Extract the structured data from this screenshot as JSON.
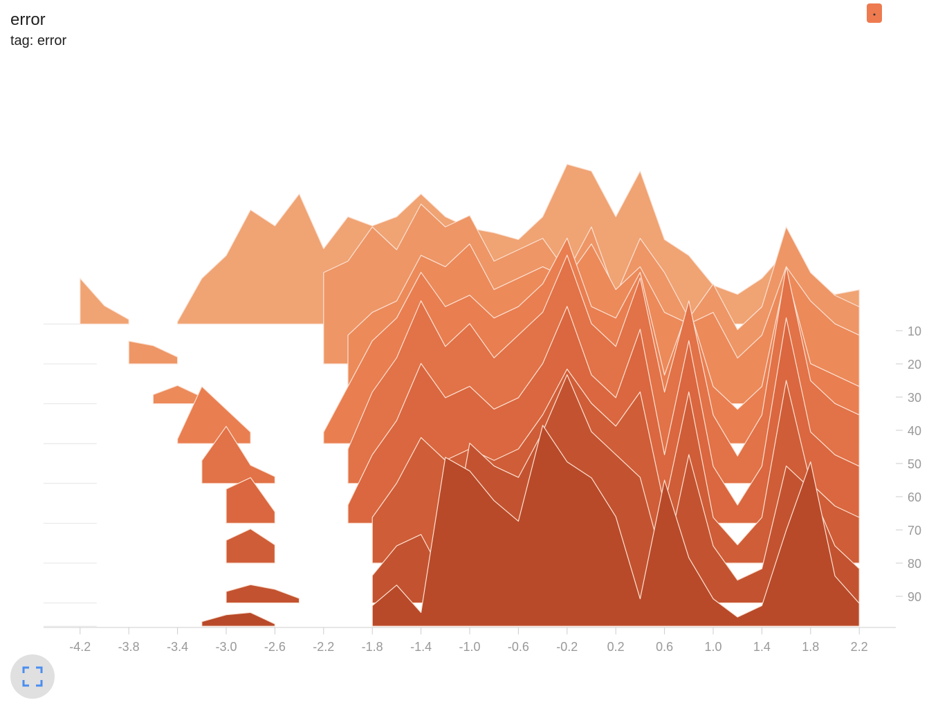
{
  "header": {
    "title": "error",
    "tag": "tag: error"
  },
  "chart_data": {
    "type": "ridgeline",
    "x": [
      -4.2,
      -4.0,
      -3.8,
      -3.6,
      -3.4,
      -3.2,
      -3.0,
      -2.8,
      -2.6,
      -2.4,
      -2.2,
      -2.0,
      -1.8,
      -1.6,
      -1.4,
      -1.2,
      -1.0,
      -0.8,
      -0.6,
      -0.4,
      -0.2,
      0.0,
      0.2,
      0.4,
      0.6,
      0.8,
      1.0,
      1.2,
      1.4,
      1.6,
      1.8,
      2.0,
      2.2
    ],
    "xlim": [
      -4.5,
      2.5
    ],
    "xticks": [
      -4.2,
      -3.8,
      -3.4,
      {
        "value": -3,
        "label": "-3.0"
      },
      -2.6,
      -2.2,
      -1.8,
      -1.4,
      {
        "value": -1,
        "label": "-1.0"
      },
      -0.6,
      -0.2,
      0.2,
      0.6,
      {
        "value": 1,
        "label": "1.0"
      },
      1.4,
      1.8,
      2.2
    ],
    "ylim": [
      0,
      100
    ],
    "yticks": [
      10,
      20,
      30,
      40,
      50,
      60,
      70,
      80,
      90
    ],
    "series": [
      {
        "step": 8,
        "color": "#f0a373",
        "values": [
          20,
          8,
          2,
          null,
          1,
          20,
          30,
          50,
          43,
          57,
          33,
          47,
          43,
          47,
          57,
          47,
          42,
          40,
          37,
          47,
          70,
          67,
          47,
          67,
          37,
          30,
          17,
          13,
          20,
          32,
          20,
          13,
          15
        ]
      },
      {
        "step": 20,
        "color": "#ee9666",
        "values": [
          null,
          null,
          10,
          8,
          3,
          null,
          null,
          null,
          null,
          null,
          40,
          45,
          60,
          50,
          70,
          60,
          65,
          45,
          50,
          55,
          40,
          60,
          30,
          55,
          40,
          20,
          35,
          15,
          25,
          60,
          40,
          30,
          25
        ]
      },
      {
        "step": 32,
        "color": "#ec8a5a",
        "values": [
          null,
          null,
          null,
          4,
          8,
          3,
          null,
          null,
          null,
          null,
          null,
          30,
          40,
          45,
          65,
          60,
          70,
          50,
          55,
          60,
          55,
          70,
          50,
          60,
          40,
          35,
          40,
          20,
          30,
          60,
          45,
          35,
          30
        ]
      },
      {
        "step": 44,
        "color": "#e97e50",
        "values": [
          null,
          null,
          null,
          null,
          2,
          25,
          15,
          5,
          null,
          null,
          5,
          25,
          45,
          55,
          75,
          60,
          65,
          55,
          60,
          70,
          90,
          60,
          55,
          75,
          30,
          60,
          25,
          15,
          25,
          75,
          35,
          30,
          25
        ]
      },
      {
        "step": 56,
        "color": "#e27247",
        "values": [
          null,
          null,
          null,
          null,
          null,
          10,
          25,
          8,
          3,
          null,
          null,
          15,
          40,
          55,
          80,
          60,
          70,
          55,
          65,
          75,
          100,
          70,
          60,
          90,
          40,
          80,
          30,
          12,
          30,
          95,
          45,
          35,
          30
        ]
      },
      {
        "step": 68,
        "color": "#da673f",
        "values": [
          null,
          null,
          null,
          null,
          null,
          null,
          15,
          20,
          5,
          null,
          null,
          8,
          30,
          45,
          70,
          55,
          60,
          50,
          55,
          70,
          95,
          65,
          55,
          85,
          30,
          80,
          25,
          8,
          25,
          90,
          40,
          30,
          25
        ]
      },
      {
        "step": 80,
        "color": "#cf5d37",
        "values": [
          null,
          null,
          null,
          null,
          null,
          null,
          10,
          15,
          8,
          null,
          null,
          null,
          20,
          35,
          55,
          45,
          50,
          45,
          50,
          65,
          85,
          70,
          60,
          75,
          25,
          75,
          20,
          8,
          20,
          80,
          35,
          25,
          20
        ]
      },
      {
        "step": 92,
        "color": "#c35330",
        "values": [
          null,
          null,
          null,
          null,
          null,
          null,
          5,
          8,
          6,
          2,
          null,
          null,
          12,
          25,
          30,
          10,
          70,
          60,
          55,
          75,
          100,
          75,
          65,
          55,
          15,
          65,
          25,
          10,
          15,
          60,
          50,
          25,
          15
        ]
      },
      {
        "step": 99,
        "color": "#b84a29",
        "values": [
          null,
          null,
          null,
          null,
          null,
          2,
          5,
          6,
          1,
          null,
          null,
          null,
          9,
          18,
          6,
          74,
          68,
          55,
          46,
          88,
          72,
          65,
          48,
          12,
          64,
          30,
          12,
          4,
          9,
          42,
          72,
          22,
          10
        ]
      }
    ]
  }
}
